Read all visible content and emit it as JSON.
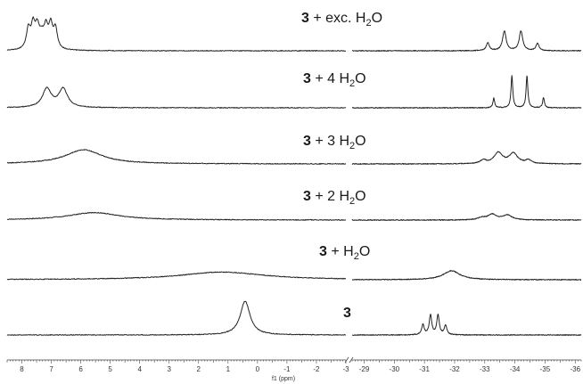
{
  "chart_data": {
    "type": "line",
    "title": "",
    "xlabel": "f1 (ppm)",
    "x_axis": {
      "reversed": true,
      "broken": true,
      "left_range": [
        8.5,
        -3.0
      ],
      "right_range": [
        -28.6,
        -36.2
      ],
      "tick_labels_left": [
        "8",
        "7",
        "6",
        "5",
        "4",
        "3",
        "2",
        "1",
        "0",
        "-1",
        "-2",
        "-3"
      ],
      "tick_labels_right": [
        "-29",
        "-30",
        "-31",
        "-32",
        "-33",
        "-34",
        "-35",
        "-36"
      ]
    },
    "grid": false,
    "series": [
      {
        "label_prefix": "3",
        "label_suffix": "+ exc. H",
        "label_sub": "2",
        "label_end": "O",
        "left_peaks": [
          [
            7.78,
            0.55,
            0.08
          ],
          [
            7.62,
            0.62,
            0.08
          ],
          [
            7.48,
            0.52,
            0.08
          ],
          [
            7.18,
            0.52,
            0.08
          ],
          [
            7.02,
            0.62,
            0.08
          ],
          [
            6.86,
            0.55,
            0.08
          ],
          [
            7.33,
            0.35,
            0.12
          ]
        ],
        "right_peaks": [
          [
            -33.1,
            0.22,
            0.06
          ],
          [
            -33.65,
            0.55,
            0.07
          ],
          [
            -34.2,
            0.55,
            0.07
          ],
          [
            -34.75,
            0.2,
            0.06
          ]
        ]
      },
      {
        "label_prefix": "3",
        "label_suffix": "+ 4 H",
        "label_sub": "2",
        "label_end": "O",
        "left_peaks": [
          [
            7.15,
            0.58,
            0.18
          ],
          [
            6.6,
            0.58,
            0.18
          ]
        ],
        "right_peaks": [
          [
            -33.3,
            0.3,
            0.035
          ],
          [
            -33.9,
            1.0,
            0.035
          ],
          [
            -34.4,
            1.0,
            0.035
          ],
          [
            -34.95,
            0.32,
            0.035
          ]
        ]
      },
      {
        "label_prefix": "3",
        "label_suffix": "+ 3 H",
        "label_sub": "2",
        "label_end": "O",
        "left_peaks": [
          [
            5.9,
            0.42,
            0.75
          ]
        ],
        "right_peaks": [
          [
            -32.95,
            0.1,
            0.12
          ],
          [
            -33.45,
            0.32,
            0.17
          ],
          [
            -33.95,
            0.3,
            0.17
          ],
          [
            -34.45,
            0.1,
            0.12
          ]
        ]
      },
      {
        "label_prefix": "3",
        "label_suffix": "+ 2 H",
        "label_sub": "2",
        "label_end": "O",
        "left_peaks": [
          [
            5.55,
            0.22,
            1.05
          ]
        ],
        "right_peaks": [
          [
            -32.9,
            0.06,
            0.15
          ],
          [
            -33.25,
            0.16,
            0.18
          ],
          [
            -33.75,
            0.14,
            0.18
          ]
        ]
      },
      {
        "label_prefix": "3",
        "label_suffix": "+ H",
        "label_sub": "2",
        "label_end": "O",
        "left_peaks": [
          [
            1.2,
            0.24,
            1.7
          ]
        ],
        "right_peaks": [
          [
            -31.9,
            0.28,
            0.33
          ]
        ]
      },
      {
        "label_prefix": "3",
        "label_suffix": "",
        "label_sub": "",
        "label_end": "",
        "left_peaks": [
          [
            0.42,
            1.0,
            0.2
          ]
        ],
        "right_peaks": [
          [
            -30.95,
            0.3,
            0.05
          ],
          [
            -31.2,
            0.58,
            0.05
          ],
          [
            -31.45,
            0.58,
            0.05
          ],
          [
            -31.7,
            0.28,
            0.05
          ]
        ]
      }
    ]
  }
}
